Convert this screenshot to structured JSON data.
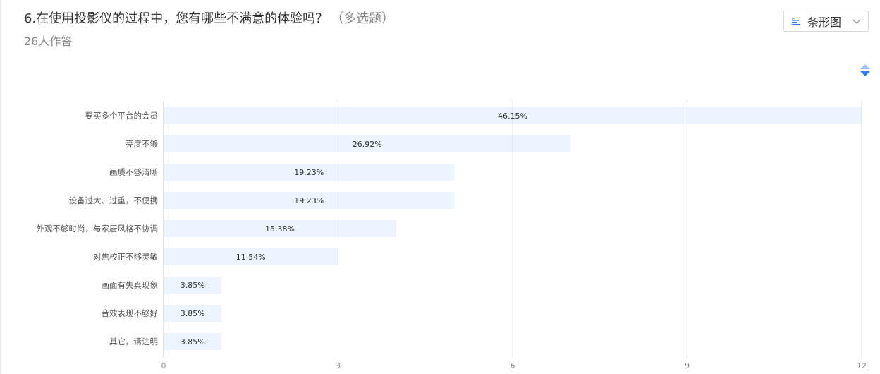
{
  "question": {
    "title": "6.在使用投影仪的过程中，您有哪些不满意的体验吗？",
    "hint": "（多选题）",
    "respondents": "26人作答"
  },
  "controls": {
    "chart_type_label": "条形图",
    "chart_type_icon": "bar-chart-icon",
    "dropdown_icon": "chevron-down-icon",
    "sort_icon": "sort-icon",
    "sort_up_color": "#9cc7f5",
    "sort_down_color": "#2e83f0"
  },
  "colors": {
    "bar": "#ecf4fd",
    "grid": "#d9d9d9"
  },
  "chart_data": {
    "type": "bar",
    "orientation": "horizontal",
    "categories": [
      "要买多个平台的会员",
      "亮度不够",
      "画质不够清晰",
      "设备过大、过重，不便携",
      "外观不够时尚，与家居风格不协调",
      "对焦校正不够灵敏",
      "画面有失真现象",
      "音效表现不够好",
      "其它，请注明"
    ],
    "values": [
      12,
      7,
      5,
      5,
      4,
      3,
      1,
      1,
      1
    ],
    "labels": [
      "46.15%",
      "26.92%",
      "19.23%",
      "19.23%",
      "15.38%",
      "11.54%",
      "3.85%",
      "3.85%",
      "3.85%"
    ],
    "xlim": [
      0,
      12
    ],
    "xticks": [
      0,
      3,
      6,
      9,
      12
    ],
    "xtick_labels": [
      "0",
      "3",
      "6",
      "9",
      "12"
    ],
    "grid": true
  }
}
